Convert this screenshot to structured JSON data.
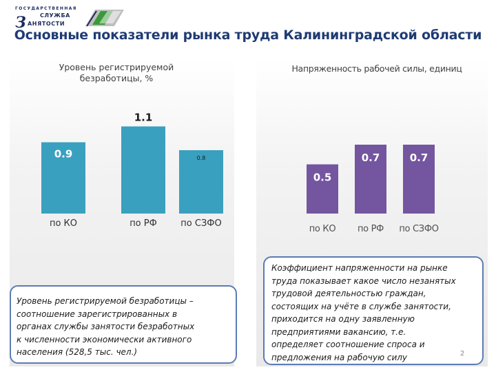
{
  "logo": {
    "line1": "ГОСУДАРСТВЕННАЯ",
    "line2": "СЛУЖБА",
    "line3_letter": "З",
    "line3_rest": "АНЯТОСТИ",
    "colors": {
      "navy": "#1b2a5e",
      "green": "#3a9a3a",
      "gray": "#8a8a8a"
    }
  },
  "title": "Основные показатели рынка труда Калининградской области",
  "chart_data": [
    {
      "type": "bar",
      "title": "Уровень  регистрируемой безработицы,  %",
      "categories": [
        "по КО",
        "по РФ",
        "по СЗФО"
      ],
      "values": [
        0.9,
        1.1,
        0.8
      ],
      "value_labels": [
        "0.9",
        "1.1",
        "0.8"
      ],
      "ylim": [
        0,
        1.6
      ],
      "color": "#3aa0c0",
      "grid": false,
      "legend": "none"
    },
    {
      "type": "bar",
      "title": "Напряженность рабочей силы, единиц",
      "categories": [
        "по КО",
        "по РФ",
        "по СЗФО"
      ],
      "values": [
        0.5,
        0.7,
        0.7
      ],
      "value_labels": [
        "0.5",
        "0.7",
        "0.7"
      ],
      "ylim": [
        0,
        1.4
      ],
      "color": "#7455a0",
      "grid": false,
      "legend": "none"
    }
  ],
  "notes": {
    "left": [
      "Уровень регистрируемой безработицы –",
      "соотношение зарегистрированных в",
      "органах службы занятости безработных",
      "к численности экономически активного",
      "населения (528,5 тыс. чел.)"
    ],
    "right": [
      "Коэффициент напряженности на рынке",
      "труда показывает какое число незанятых",
      "трудовой деятельностью граждан,",
      "состоящих на учёте в службе занятости,",
      "приходится на одну заявленную",
      "предприятиями вакансию, т.е.",
      "определяет соотношение спроса и",
      "предложения на рабочую силу"
    ]
  },
  "page_number": "2"
}
